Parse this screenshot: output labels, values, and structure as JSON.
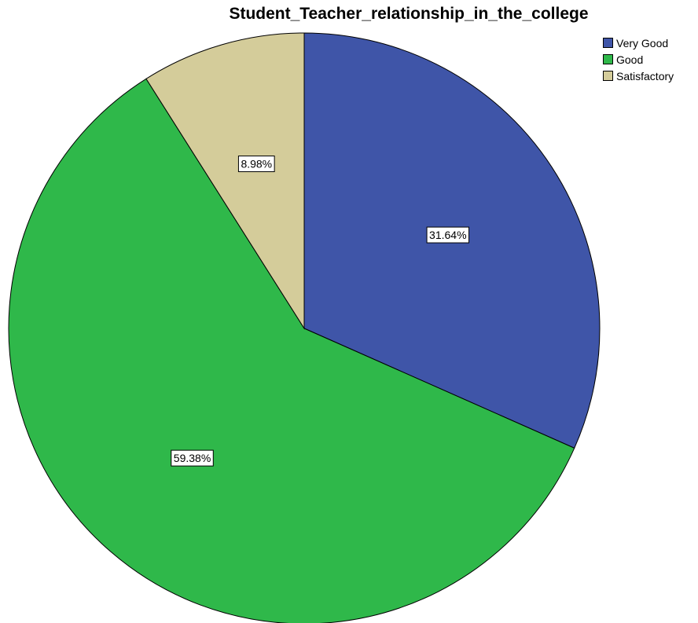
{
  "chart_data": {
    "type": "pie",
    "title": "Student_Teacher_relationship_in_the_college",
    "slices": [
      {
        "label": "Very Good",
        "value": 31.64,
        "display": "31.64%",
        "color": "#3f55a8"
      },
      {
        "label": "Good",
        "value": 59.38,
        "display": "59.38%",
        "color": "#2fb84a"
      },
      {
        "label": "Satisfactory",
        "value": 8.98,
        "display": "8.98%",
        "color": "#d4cc9a"
      }
    ],
    "legend_position": "top-right",
    "start_angle": "12 o'clock",
    "direction": "clockwise"
  }
}
